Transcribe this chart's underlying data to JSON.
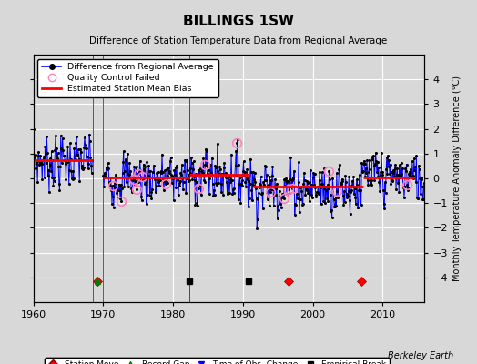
{
  "title": "BILLINGS 1SW",
  "subtitle": "Difference of Station Temperature Data from Regional Average",
  "ylabel": "Monthly Temperature Anomaly Difference (°C)",
  "credit": "Berkeley Earth",
  "xlim": [
    1960,
    2016
  ],
  "ylim": [
    -5,
    5
  ],
  "yticks": [
    -4,
    -3,
    -2,
    -1,
    0,
    1,
    2,
    3,
    4
  ],
  "xticks": [
    1960,
    1970,
    1980,
    1990,
    2000,
    2010
  ],
  "bg_color": "#d8d8d8",
  "plot_bg": "#d8d8d8",
  "grid_color": "white",
  "segments": [
    {
      "start": 1960.0,
      "end": 1968.5,
      "bias": 0.72
    },
    {
      "start": 1970.0,
      "end": 1982.3,
      "bias": 0.05
    },
    {
      "start": 1982.3,
      "end": 1990.75,
      "bias": 0.15
    },
    {
      "start": 1991.5,
      "end": 1996.5,
      "bias": -0.33
    },
    {
      "start": 1996.5,
      "end": 2007.2,
      "bias": -0.33
    },
    {
      "start": 2007.2,
      "end": 2014.5,
      "bias": 0.05
    }
  ],
  "gap_start": 1968.5,
  "gap_end": 1970.0,
  "station_moves": [
    1969.1,
    1996.5,
    2006.9
  ],
  "record_gaps": [
    1969.1
  ],
  "obs_changes": [
    1990.75
  ],
  "empirical_breaks": [
    1982.3,
    1990.75
  ],
  "qc_fails_approx": [
    1971.3,
    1972.6,
    1974.3,
    1974.8,
    1975.1,
    1975.6,
    1978.9,
    1983.6,
    1984.6,
    1989.2,
    1993.9,
    1995.8,
    1996.6,
    1997.1,
    2002.3,
    2003.5,
    2013.5
  ],
  "marker_y": -4.15,
  "line_color": "blue",
  "dot_color": "black",
  "qc_color": "#ff80c0",
  "bias_color": "red",
  "bias_lw": 2.0
}
